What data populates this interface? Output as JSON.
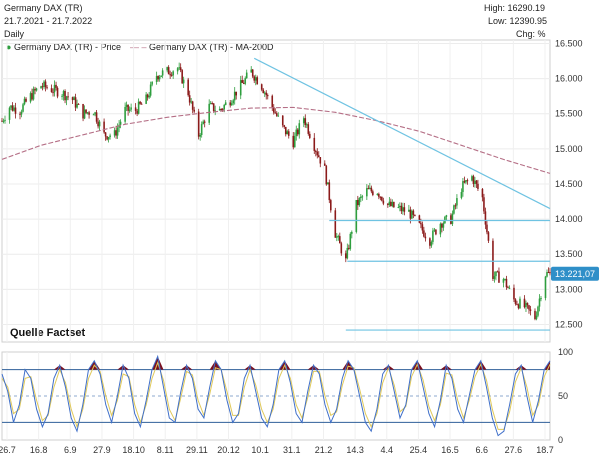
{
  "header": {
    "title": "Germany DAX (TR)",
    "date_range": "21.7.2021 - 21.7.2022",
    "interval": "Daily",
    "high": "High: 16290.19",
    "low": "Low: 12390.95",
    "change": "Chg: %"
  },
  "legend": {
    "price_label": "Germany DAX (TR) - Price",
    "ma_label": "Germany DAX (TR) - MA-200D"
  },
  "source": "Quelle Factset",
  "last_value": "13.221,07",
  "colors": {
    "up": "#2e9e3e",
    "down": "#8b1a1a",
    "ma": "#b56f86",
    "trend": "#6fc3e2",
    "osc_fast": "#3f6fc9",
    "osc_slow": "#e0c95a",
    "band": "#2f5f99",
    "fill": "#7a1020",
    "badge": "#2f8fc8"
  },
  "chart_data": [
    {
      "type": "candlestick",
      "title": "Germany DAX (TR)",
      "x_ticks": [
        "26.7",
        "16.8",
        "6.9",
        "27.9",
        "18.10",
        "8.11",
        "29.11",
        "20.12",
        "10.1",
        "31.1",
        "21.2",
        "14.3",
        "4.4",
        "25.4",
        "16.5",
        "6.6",
        "27.6",
        "18.7"
      ],
      "y_ticks": [
        12500,
        13000,
        13500,
        14000,
        14500,
        15000,
        15500,
        16000,
        16500
      ],
      "ylim": [
        12250,
        16550
      ],
      "grid": true,
      "series": [
        {
          "name": "Germany DAX (TR) - Price",
          "points": [
            [
              "2021-07-21",
              15400
            ],
            [
              "2021-07-26",
              15600
            ],
            [
              "2021-08-02",
              15550
            ],
            [
              "2021-08-09",
              15750
            ],
            [
              "2021-08-16",
              15900
            ],
            [
              "2021-08-23",
              15850
            ],
            [
              "2021-08-30",
              15800
            ],
            [
              "2021-09-06",
              15700
            ],
            [
              "2021-09-13",
              15500
            ],
            [
              "2021-09-20",
              15550
            ],
            [
              "2021-09-27",
              15200
            ],
            [
              "2021-10-04",
              15200
            ],
            [
              "2021-10-11",
              15550
            ],
            [
              "2021-10-18",
              15550
            ],
            [
              "2021-10-25",
              15700
            ],
            [
              "2021-11-01",
              16050
            ],
            [
              "2021-11-08",
              16100
            ],
            [
              "2021-11-15",
              16150
            ],
            [
              "2021-11-22",
              15800
            ],
            [
              "2021-11-29",
              15200
            ],
            [
              "2021-12-06",
              15600
            ],
            [
              "2021-12-13",
              15550
            ],
            [
              "2021-12-20",
              15700
            ],
            [
              "2021-12-27",
              15900
            ],
            [
              "2022-01-03",
              16100
            ],
            [
              "2022-01-10",
              15900
            ],
            [
              "2022-01-17",
              15600
            ],
            [
              "2022-01-24",
              15300
            ],
            [
              "2022-01-31",
              15100
            ],
            [
              "2022-02-07",
              15450
            ],
            [
              "2022-02-14",
              15050
            ],
            [
              "2022-02-21",
              14700
            ],
            [
              "2022-02-28",
              13800
            ],
            [
              "2022-03-07",
              13400
            ],
            [
              "2022-03-14",
              14200
            ],
            [
              "2022-03-21",
              14400
            ],
            [
              "2022-03-28",
              14400
            ],
            [
              "2022-04-04",
              14200
            ],
            [
              "2022-04-11",
              14150
            ],
            [
              "2022-04-18",
              14100
            ],
            [
              "2022-04-25",
              13900
            ],
            [
              "2022-05-02",
              13700
            ],
            [
              "2022-05-09",
              13950
            ],
            [
              "2022-05-16",
              14000
            ],
            [
              "2022-05-23",
              14450
            ],
            [
              "2022-05-30",
              14600
            ],
            [
              "2022-06-06",
              14300
            ],
            [
              "2022-06-13",
              13200
            ],
            [
              "2022-06-20",
              13150
            ],
            [
              "2022-06-27",
              12850
            ],
            [
              "2022-07-04",
              12750
            ],
            [
              "2022-07-11",
              12600
            ],
            [
              "2022-07-18",
              13221
            ]
          ]
        },
        {
          "name": "Germany DAX (TR) - MA-200D",
          "points": [
            [
              "2021-07-21",
              14850
            ],
            [
              "2021-08-16",
              15050
            ],
            [
              "2021-09-13",
              15200
            ],
            [
              "2021-10-11",
              15350
            ],
            [
              "2021-11-08",
              15450
            ],
            [
              "2021-12-06",
              15520
            ],
            [
              "2022-01-03",
              15580
            ],
            [
              "2022-01-31",
              15590
            ],
            [
              "2022-02-28",
              15520
            ],
            [
              "2022-03-28",
              15400
            ],
            [
              "2022-04-25",
              15250
            ],
            [
              "2022-05-23",
              15050
            ],
            [
              "2022-06-20",
              14850
            ],
            [
              "2022-07-21",
              14650
            ]
          ]
        }
      ],
      "trendlines": [
        {
          "from": [
            "2022-01-05",
            16290
          ],
          "to": [
            "2022-07-21",
            14150
          ]
        },
        {
          "from": [
            "2022-02-24",
            13980
          ],
          "to": [
            "2022-07-21",
            13980
          ]
        },
        {
          "from": [
            "2022-03-08",
            13400
          ],
          "to": [
            "2022-07-21",
            13400
          ]
        },
        {
          "from": [
            "2022-03-07",
            12420
          ],
          "to": [
            "2022-07-21",
            12420
          ]
        }
      ]
    },
    {
      "type": "line",
      "title": "",
      "x_ticks": [
        "26.7",
        "16.8",
        "6.9",
        "27.9",
        "18.10",
        "8.11",
        "29.11",
        "20.12",
        "10.1",
        "31.1",
        "21.2",
        "14.3",
        "4.4",
        "25.4",
        "16.5",
        "6.6",
        "27.6",
        "18.7"
      ],
      "y_ticks": [
        0,
        50,
        100
      ],
      "ylim": [
        0,
        100
      ],
      "bands": [
        80,
        20
      ],
      "midline": 50,
      "series": [
        {
          "name": "",
          "values": [
            75,
            55,
            20,
            40,
            80,
            70,
            35,
            15,
            30,
            70,
            85,
            60,
            25,
            10,
            40,
            80,
            90,
            75,
            40,
            20,
            50,
            85,
            70,
            30,
            15,
            45,
            80,
            95,
            60,
            25,
            20,
            55,
            85,
            70,
            35,
            25,
            60,
            90,
            80,
            45,
            20,
            30,
            70,
            85,
            55,
            25,
            15,
            40,
            80,
            90,
            65,
            30,
            20,
            55,
            85,
            75,
            40,
            20,
            35,
            70,
            90,
            80,
            50,
            20,
            10,
            35,
            75,
            85,
            55,
            25,
            40,
            80,
            90,
            60,
            30,
            15,
            45,
            85,
            70,
            35,
            20,
            50,
            80,
            90,
            60,
            25,
            5,
            10,
            40,
            75,
            85,
            50,
            20,
            45,
            80,
            90
          ]
        },
        {
          "name": "",
          "values": [
            70,
            60,
            30,
            35,
            70,
            72,
            45,
            22,
            28,
            60,
            80,
            65,
            35,
            15,
            35,
            70,
            85,
            78,
            50,
            28,
            45,
            75,
            72,
            40,
            20,
            40,
            70,
            88,
            68,
            35,
            22,
            48,
            78,
            74,
            45,
            28,
            52,
            82,
            80,
            55,
            28,
            28,
            60,
            80,
            62,
            35,
            20,
            35,
            70,
            85,
            70,
            40,
            25,
            48,
            78,
            78,
            50,
            28,
            32,
            62,
            84,
            82,
            58,
            30,
            15,
            30,
            65,
            82,
            62,
            32,
            38,
            72,
            86,
            68,
            38,
            22,
            40,
            76,
            74,
            45,
            25,
            45,
            72,
            86,
            68,
            35,
            12,
            12,
            32,
            66,
            82,
            60,
            28,
            40,
            72,
            86
          ]
        }
      ]
    }
  ]
}
